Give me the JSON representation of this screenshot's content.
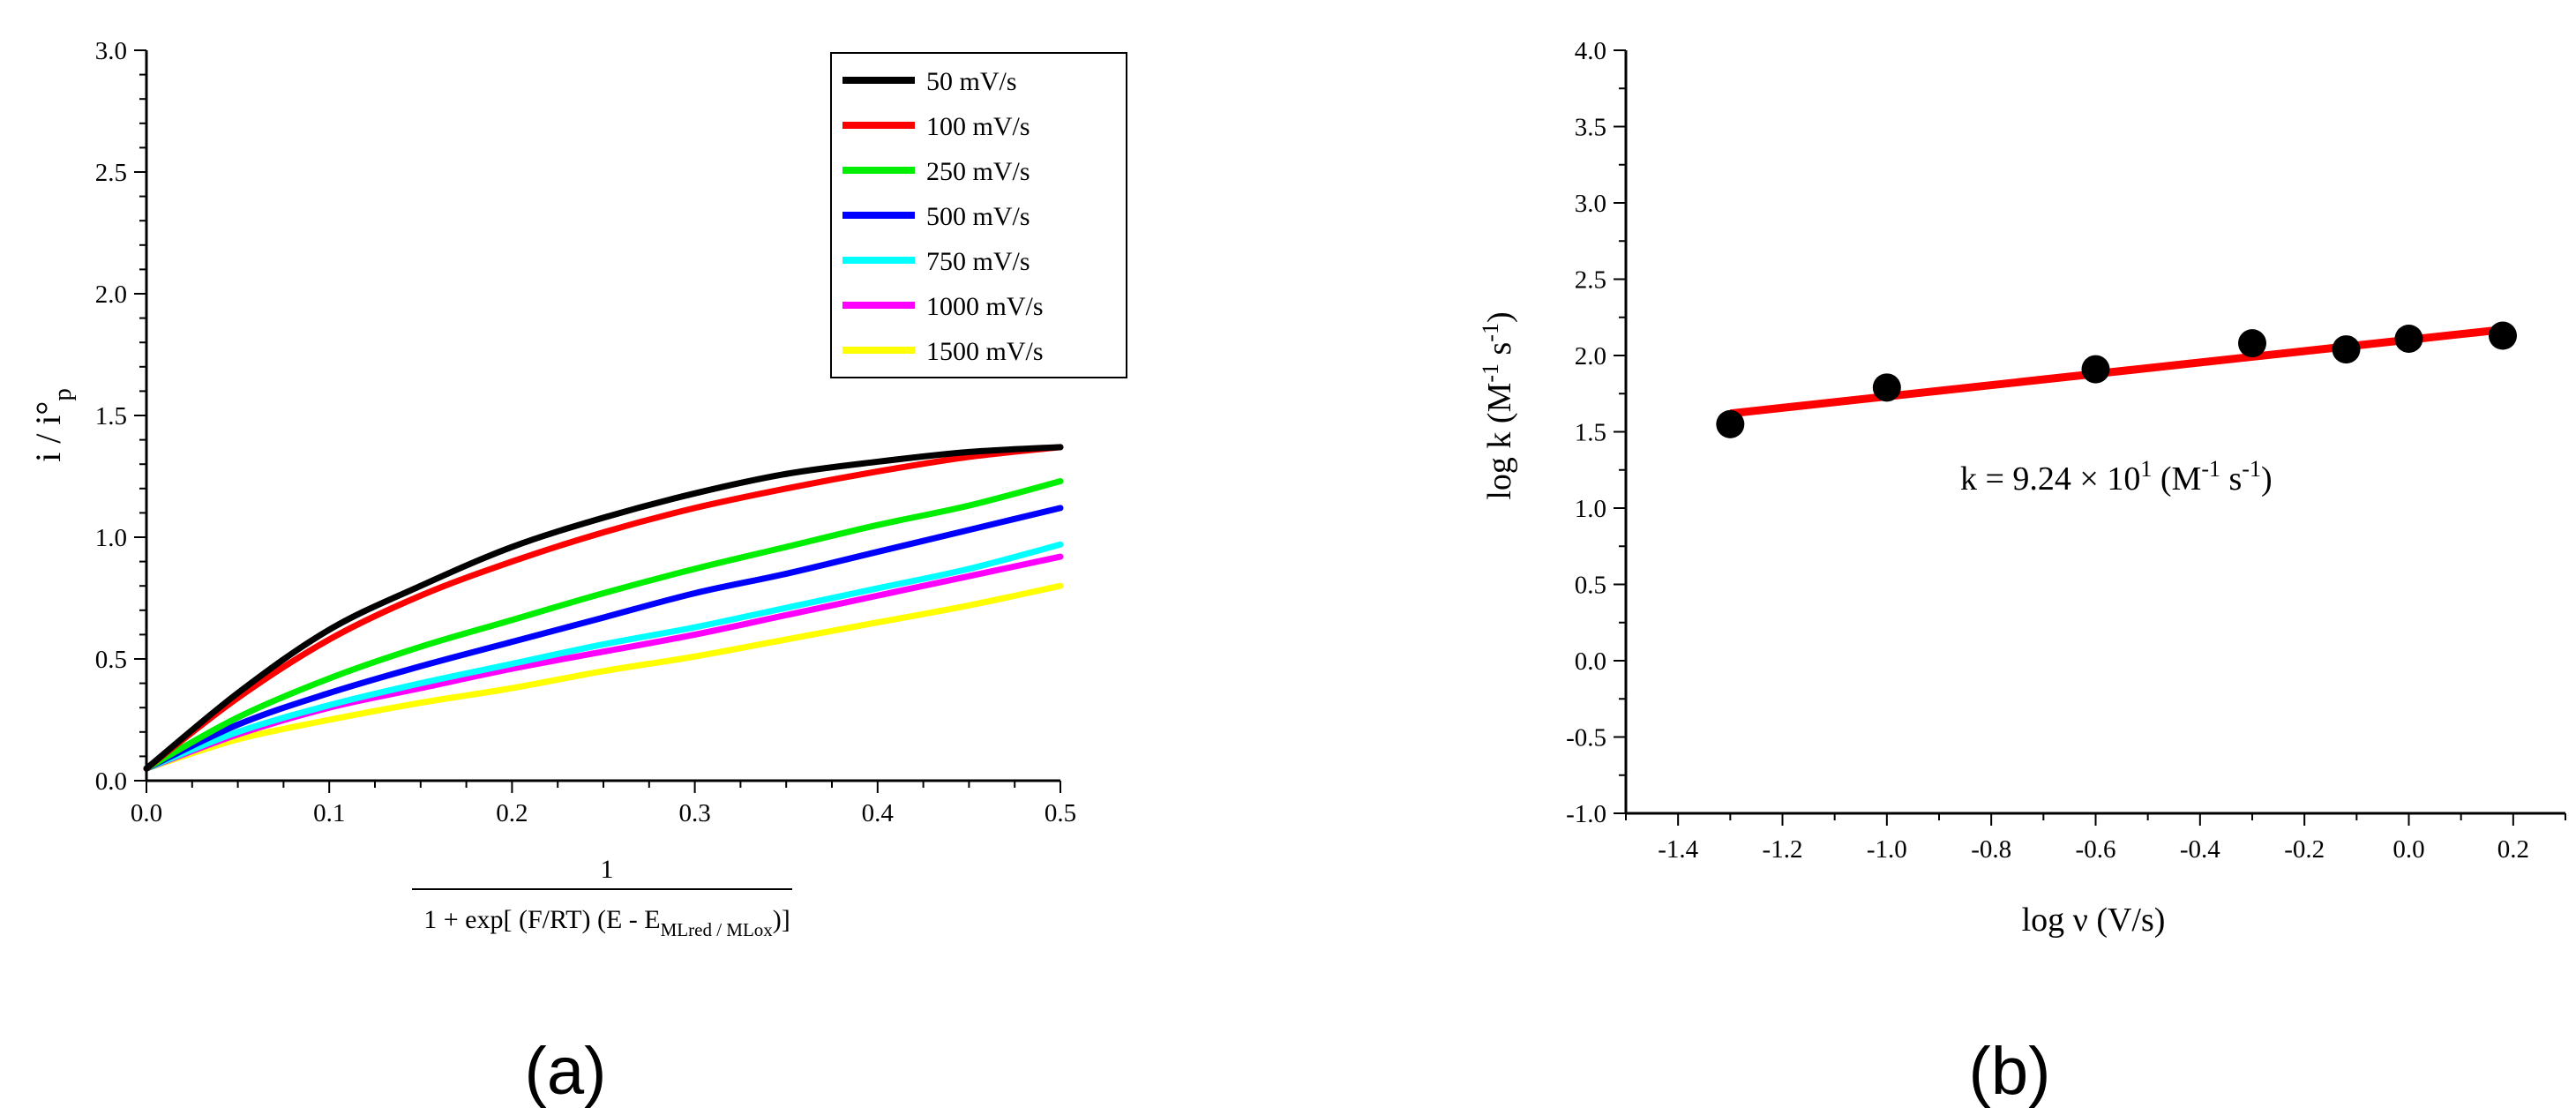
{
  "colors": {
    "axis": "#000000",
    "fit_line": "#ff0000",
    "points": "#000000"
  },
  "panel_labels": {
    "a": "(a)",
    "b": "(b)"
  },
  "chart_data": [
    {
      "panel": "a",
      "type": "line",
      "ylabel_main": "i / i°",
      "ylabel_sub": "p",
      "xlabel_numerator": "1",
      "xlabel_denominator_main": "1 + exp[ (F/RT) (E - E",
      "xlabel_denominator_sub": "MLred / MLox",
      "xlabel_denominator_end": ")]",
      "xlim": [
        0.0,
        0.5
      ],
      "ylim": [
        0.0,
        3.0
      ],
      "x_ticks": [
        0.0,
        0.1,
        0.2,
        0.3,
        0.4,
        0.5
      ],
      "x_tick_labels": [
        "0.0",
        "0.1",
        "0.2",
        "0.3",
        "0.4",
        "0.5"
      ],
      "y_ticks": [
        0.0,
        0.5,
        1.0,
        1.5,
        2.0,
        2.5,
        3.0
      ],
      "y_tick_labels": [
        "0.0",
        "0.5",
        "1.0",
        "1.5",
        "2.0",
        "2.5",
        "3.0"
      ],
      "legend_position": "top-right",
      "x": [
        0.0,
        0.05,
        0.1,
        0.15,
        0.2,
        0.25,
        0.3,
        0.35,
        0.4,
        0.45,
        0.5
      ],
      "series": [
        {
          "name": "50 mV/s",
          "color": "#000000",
          "values": [
            0.05,
            0.36,
            0.62,
            0.8,
            0.96,
            1.08,
            1.18,
            1.26,
            1.31,
            1.35,
            1.37
          ]
        },
        {
          "name": "100 mV/s",
          "color": "#ff0000",
          "values": [
            0.05,
            0.34,
            0.58,
            0.76,
            0.9,
            1.02,
            1.12,
            1.2,
            1.27,
            1.33,
            1.37
          ]
        },
        {
          "name": "250 mV/s",
          "color": "#00ee00",
          "values": [
            0.05,
            0.26,
            0.42,
            0.55,
            0.66,
            0.77,
            0.87,
            0.96,
            1.05,
            1.13,
            1.23
          ]
        },
        {
          "name": "500 mV/s",
          "color": "#0000ff",
          "values": [
            0.05,
            0.23,
            0.36,
            0.47,
            0.57,
            0.67,
            0.77,
            0.85,
            0.94,
            1.03,
            1.12
          ]
        },
        {
          "name": "750 mV/s",
          "color": "#00ffff",
          "values": [
            0.05,
            0.2,
            0.31,
            0.4,
            0.48,
            0.56,
            0.63,
            0.71,
            0.79,
            0.87,
            0.97
          ]
        },
        {
          "name": "1000 mV/s",
          "color": "#ff00ff",
          "values": [
            0.05,
            0.19,
            0.3,
            0.38,
            0.46,
            0.53,
            0.6,
            0.68,
            0.76,
            0.84,
            0.92
          ]
        },
        {
          "name": "1500 mV/s",
          "color": "#ffff00",
          "values": [
            0.05,
            0.17,
            0.25,
            0.32,
            0.38,
            0.45,
            0.51,
            0.58,
            0.65,
            0.72,
            0.8
          ]
        }
      ]
    },
    {
      "panel": "b",
      "type": "scatter",
      "ylabel": "log k (M",
      "ylabel_sup1": "-1",
      "ylabel_mid": " s",
      "ylabel_sup2": "-1",
      "ylabel_end": ")",
      "xlabel": "log ν (V/s)",
      "xlim": [
        -1.5,
        0.3
      ],
      "ylim": [
        -1.0,
        4.0
      ],
      "x_ticks": [
        -1.4,
        -1.2,
        -1.0,
        -0.8,
        -0.6,
        -0.4,
        -0.2,
        0.0,
        0.2
      ],
      "x_tick_labels": [
        "-1.4",
        "-1.2",
        "-1.0",
        "-0.8",
        "-0.6",
        "-0.4",
        "-0.2",
        "0.0",
        "0.2"
      ],
      "y_ticks": [
        -1.0,
        -0.5,
        0.0,
        0.5,
        1.0,
        1.5,
        2.0,
        2.5,
        3.0,
        3.5,
        4.0
      ],
      "y_tick_labels": [
        "-1.0",
        "-0.5",
        "0.0",
        "0.5",
        "1.0",
        "1.5",
        "2.0",
        "2.5",
        "3.0",
        "3.5",
        "4.0"
      ],
      "points": {
        "x": [
          -1.3,
          -1.0,
          -0.6,
          -0.3,
          -0.12,
          0.0,
          0.18
        ],
        "y": [
          1.55,
          1.79,
          1.91,
          2.08,
          2.04,
          2.11,
          2.13
        ]
      },
      "fit_line": {
        "x": [
          -1.3,
          0.18
        ],
        "y": [
          1.62,
          2.17
        ]
      },
      "annotation": {
        "prefix": "k = 9.24 × 10",
        "exp": "1",
        "mid": " (M",
        "sup1": "-1",
        "mid2": " s",
        "sup2": "-1",
        "end": ")"
      }
    }
  ]
}
